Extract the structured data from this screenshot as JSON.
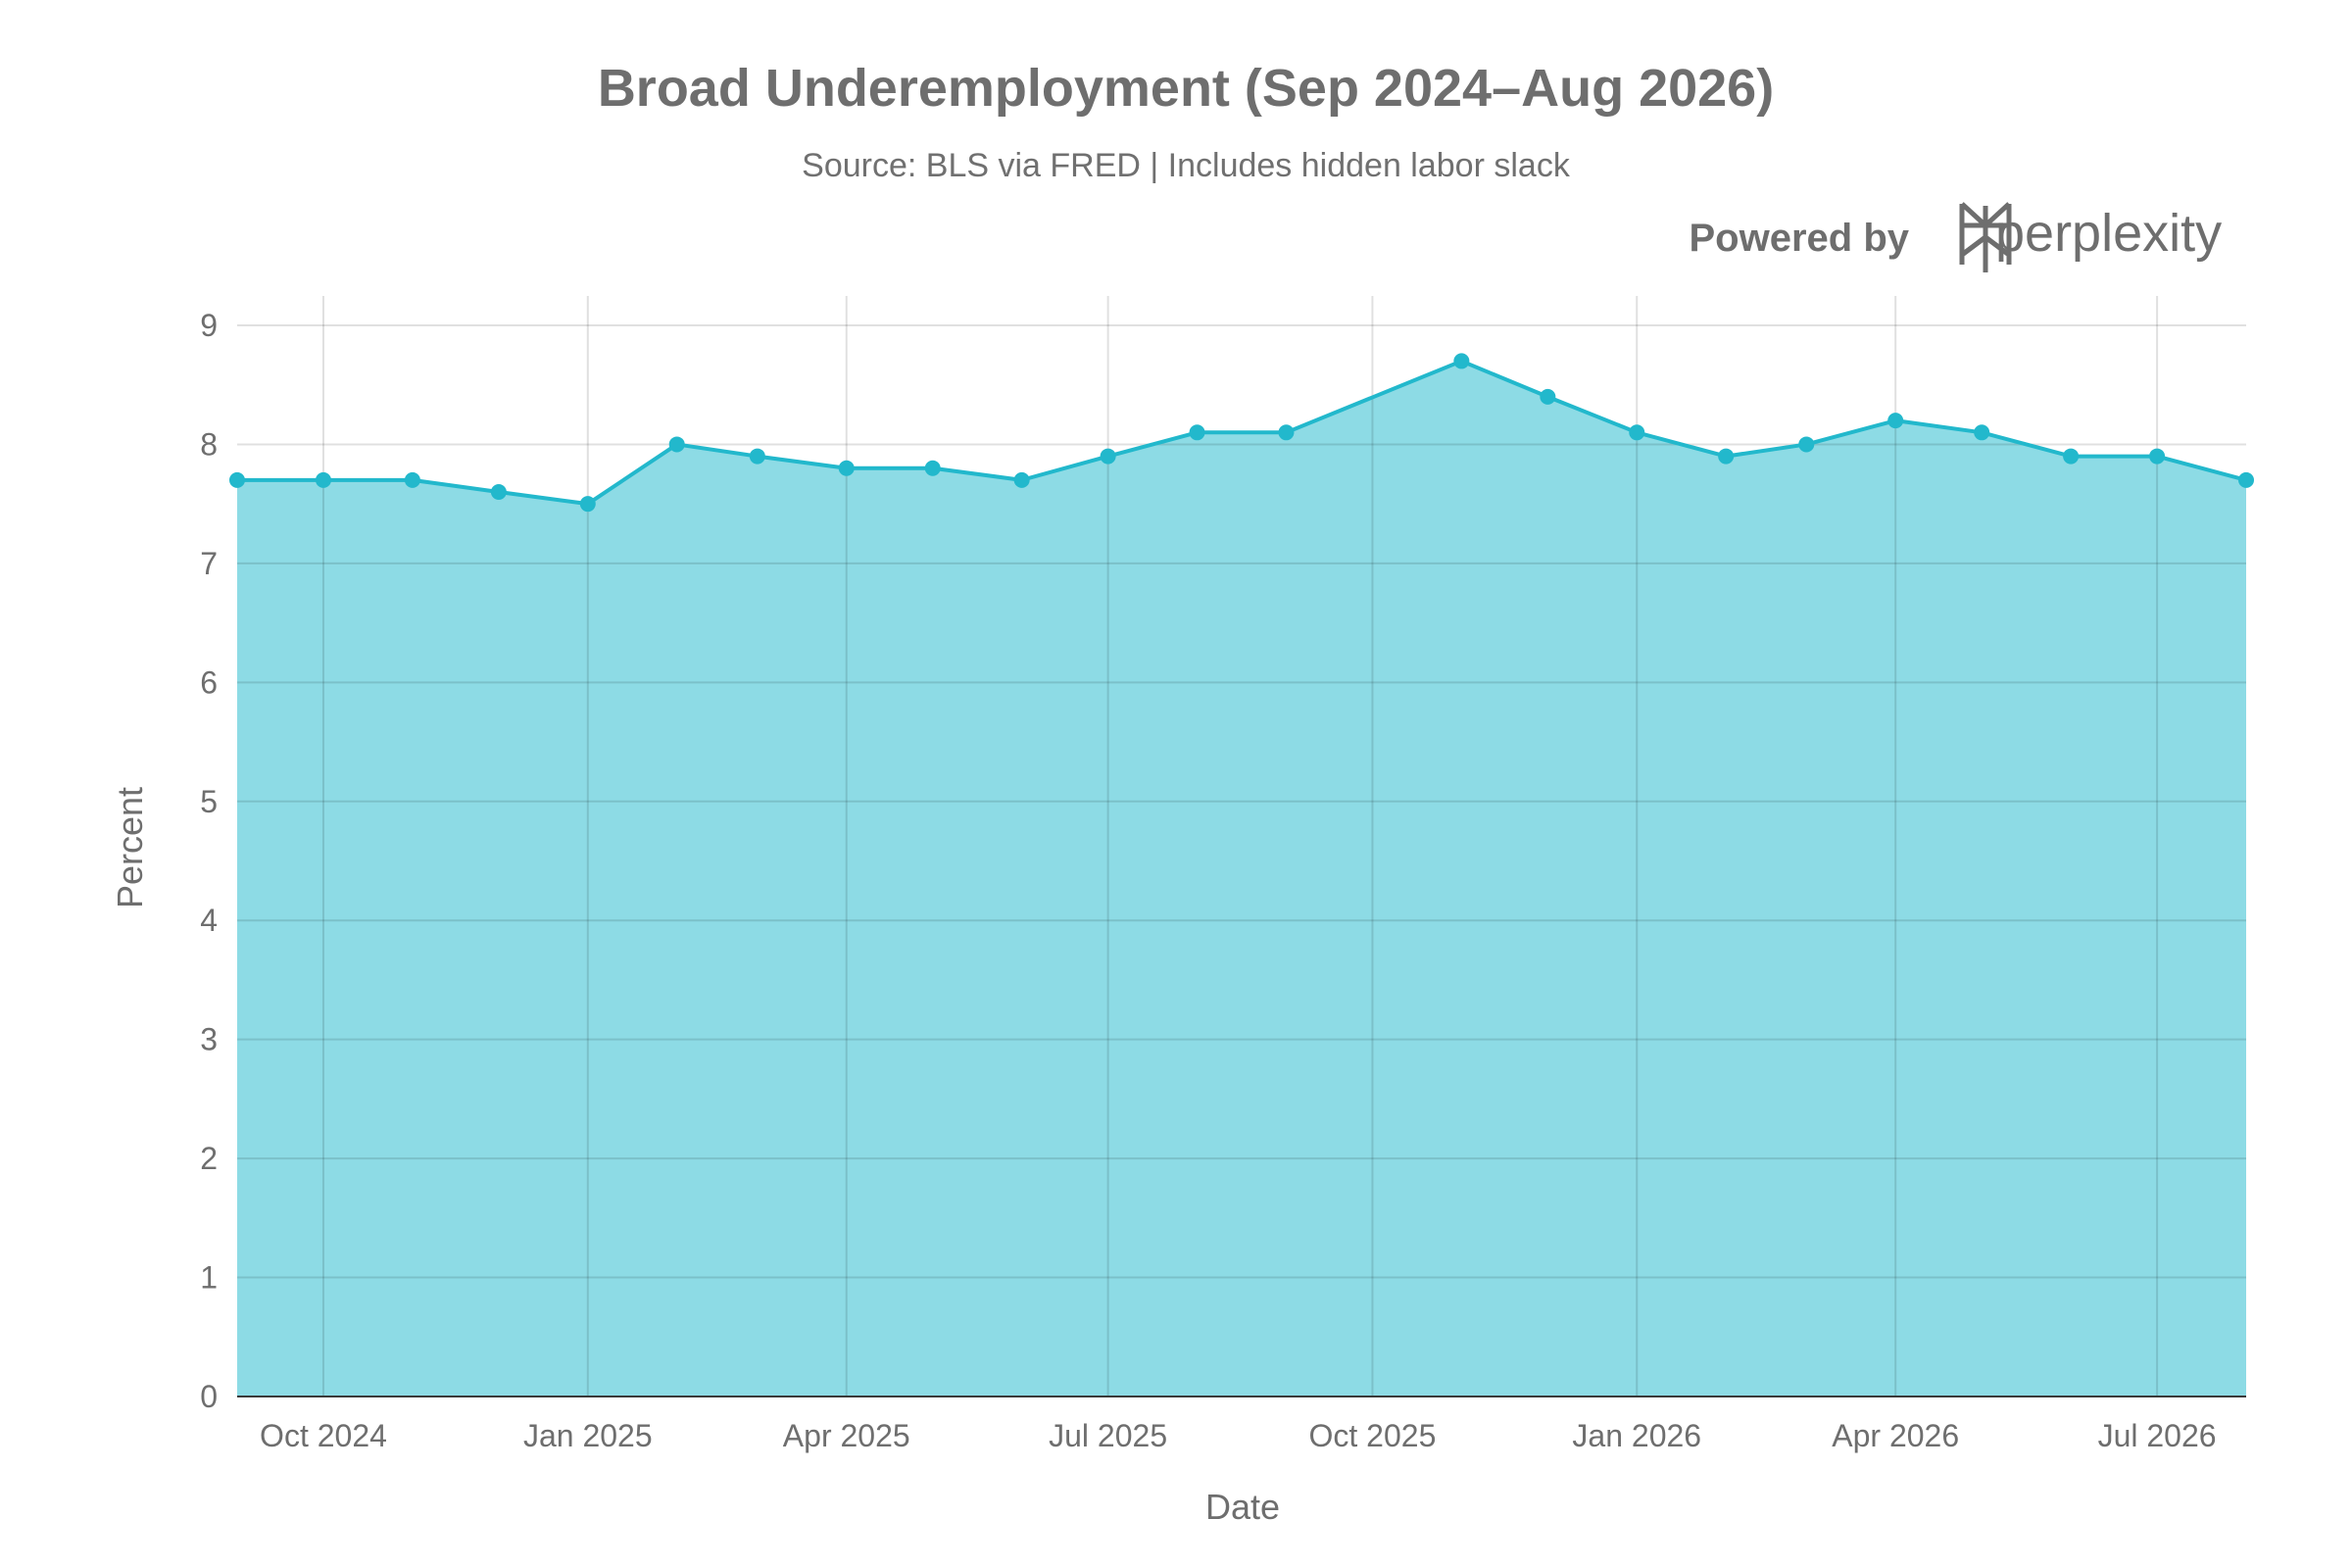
{
  "chart_data": {
    "type": "area",
    "title": "Broad Underemployment (Sep 2024–Aug 2026)",
    "subtitle": "Source: BLS via FRED | Includes hidden labor slack",
    "xlabel": "Date",
    "ylabel": "Percent",
    "ylim": [
      0,
      9
    ],
    "yticks": [
      0,
      1,
      2,
      3,
      4,
      5,
      6,
      7,
      8,
      9
    ],
    "xticks": [
      {
        "date": "2024-10-01",
        "label": "Oct 2024"
      },
      {
        "date": "2025-01-01",
        "label": "Jan 2025"
      },
      {
        "date": "2025-04-01",
        "label": "Apr 2025"
      },
      {
        "date": "2025-07-01",
        "label": "Jul 2025"
      },
      {
        "date": "2025-10-01",
        "label": "Oct 2025"
      },
      {
        "date": "2026-01-01",
        "label": "Jan 2026"
      },
      {
        "date": "2026-04-01",
        "label": "Apr 2026"
      },
      {
        "date": "2026-07-01",
        "label": "Jul 2026"
      }
    ],
    "xlim": [
      "2024-09-01",
      "2026-08-01"
    ],
    "grid": true,
    "series": [
      {
        "x": [
          "2024-09-01",
          "2024-10-01",
          "2024-11-01",
          "2024-12-01",
          "2025-01-01",
          "2025-02-01",
          "2025-03-01",
          "2025-04-01",
          "2025-05-01",
          "2025-06-01",
          "2025-07-01",
          "2025-08-01",
          "2025-09-01",
          "2025-11-01",
          "2025-12-01",
          "2026-01-01",
          "2026-02-01",
          "2026-03-01",
          "2026-04-01",
          "2026-05-01",
          "2026-06-01",
          "2026-07-01",
          "2026-08-01"
        ],
        "values": [
          7.7,
          7.7,
          7.7,
          7.6,
          7.5,
          8.0,
          7.9,
          7.8,
          7.8,
          7.7,
          7.9,
          8.1,
          8.1,
          8.7,
          8.4,
          8.1,
          7.9,
          8.0,
          8.2,
          8.1,
          7.9,
          7.9,
          7.7
        ]
      }
    ],
    "colors": {
      "line": "#22b8cc",
      "fill": "#8ddbe5",
      "grid": "#d9d9d9"
    }
  },
  "branding": {
    "powered_by": "Powered by",
    "brand_name": "perplexity",
    "logo_icon": "perplexity-logo-icon"
  }
}
